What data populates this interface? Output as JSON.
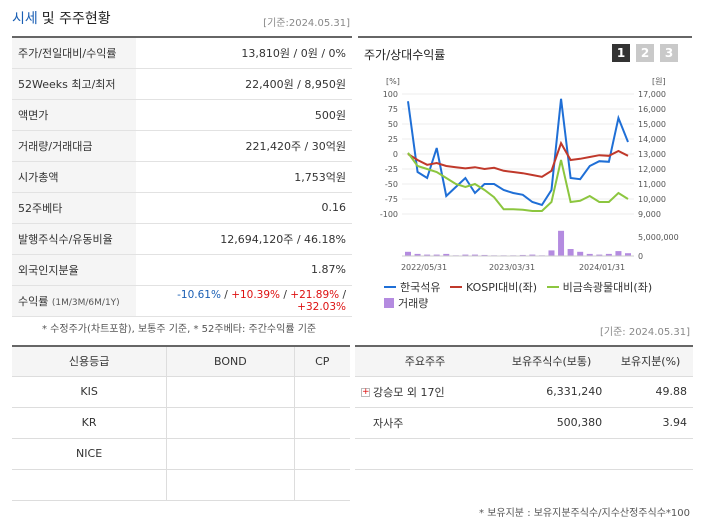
{
  "header": {
    "title_main": "시세",
    "title_rest": "및 주주현황",
    "base_date": "[기준:2024.05.31]"
  },
  "quote_rows": [
    {
      "label": "주가/전일대비/수익률",
      "value": "13,810원 / 0원 / 0%"
    },
    {
      "label": "52Weeks 최고/최저",
      "value": "22,400원 / 8,950원"
    },
    {
      "label": "액면가",
      "value": "500원"
    },
    {
      "label": "거래량/거래대금",
      "value": "221,420주 / 30억원"
    },
    {
      "label": "시가총액",
      "value": "1,753억원"
    },
    {
      "label": "52주베타",
      "value": "0.16"
    },
    {
      "label": "발행주식수/유동비율",
      "value": "12,694,120주 / 46.18%"
    },
    {
      "label": "외국인지분율",
      "value": "1.87%"
    }
  ],
  "returns": {
    "label": "수익률",
    "period": "(1M/3M/6M/1Y)",
    "r1": "-10.61%",
    "r2": "+10.39%",
    "r3": "+21.89%",
    "r4": "+32.03%",
    "sep": "/"
  },
  "note": "* 수정주가(차트포함), 보통주 기준, * 52주베타: 주간수익률 기준",
  "chart_panel": {
    "title": "주가/상대수익률",
    "tabs": [
      "1",
      "2",
      "3"
    ]
  },
  "legend": {
    "s1": "한국석유",
    "s2": "KOSPI대비(좌)",
    "s3": "비금속광물대비(좌)",
    "s4": "거래량"
  },
  "colors": {
    "stock": "#1f6fd6",
    "kospi": "#c0392b",
    "sector": "#8cc63f",
    "volume": "#b48be0"
  },
  "chart_data": {
    "type": "line",
    "x_ticks": [
      "2022/05/31",
      "2023/03/31",
      "2024/01/31"
    ],
    "left_unit": "[%]",
    "right_unit": "[원]",
    "left_ticks": [
      100,
      75,
      50,
      25,
      0,
      -25,
      -50,
      -75,
      -100
    ],
    "right_ticks": [
      "17,000",
      "16,000",
      "15,000",
      "14,000",
      "13,000",
      "12,000",
      "11,000",
      "10,000",
      "9,000"
    ],
    "volume_ticks": [
      "5,000,000",
      "0"
    ],
    "ylim_left": [
      -100,
      100
    ],
    "ylim_right": [
      9000,
      17000
    ],
    "series": [
      {
        "name": "한국석유",
        "values": [
          88,
          -30,
          -40,
          10,
          -70,
          -55,
          -40,
          -65,
          -50,
          -50,
          -60,
          -65,
          -68,
          -80,
          -85,
          -60,
          92,
          -40,
          -42,
          -20,
          -12,
          -13,
          60,
          20
        ]
      },
      {
        "name": "KOSPI대비(좌)",
        "values": [
          0,
          -10,
          -18,
          -15,
          -20,
          -22,
          -24,
          -22,
          -25,
          -23,
          -28,
          -30,
          -32,
          -35,
          -38,
          -28,
          18,
          -10,
          -8,
          -5,
          -2,
          -3,
          5,
          -3
        ]
      },
      {
        "name": "비금속광물대비(좌)",
        "values": [
          2,
          -20,
          -25,
          -30,
          -40,
          -50,
          -55,
          -50,
          -60,
          -72,
          -92,
          -92,
          -93,
          -95,
          -95,
          -80,
          -10,
          -80,
          -78,
          -70,
          -80,
          -80,
          -65,
          -75
        ]
      }
    ],
    "volume": [
      0.6,
      0.3,
      0.2,
      0.2,
      0.3,
      0.1,
      0.2,
      0.2,
      0.15,
      0.1,
      0.1,
      0.1,
      0.15,
      0.2,
      0.1,
      0.8,
      3.6,
      1.0,
      0.6,
      0.3,
      0.2,
      0.3,
      0.7,
      0.4
    ]
  },
  "credit": {
    "headers": [
      "신용등급",
      "BOND",
      "CP"
    ],
    "rows": [
      [
        "KIS",
        "",
        ""
      ],
      [
        "KR",
        "",
        ""
      ],
      [
        "NICE",
        "",
        ""
      ],
      [
        "",
        "",
        ""
      ]
    ]
  },
  "holders": {
    "headers": [
      "주요주주",
      "보유주식수(보통)",
      "보유지분(%)"
    ],
    "rows": [
      {
        "name": "강승모 외 17인",
        "shares": "6,331,240",
        "pct": "49.88"
      },
      {
        "name": "자사주",
        "shares": "500,380",
        "pct": "3.94"
      },
      {
        "name": "",
        "shares": "",
        "pct": ""
      }
    ]
  },
  "base_date2": "[기준: 2024.05.31]",
  "foot_note": "* 보유지분 : 보유지분주식수/지수산정주식수*100"
}
